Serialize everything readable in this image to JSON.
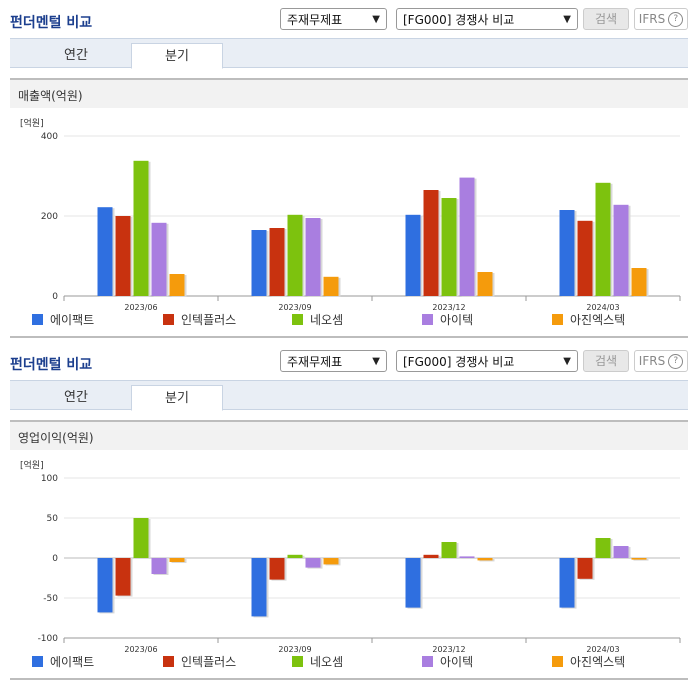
{
  "panels": [
    {
      "title": "펀더멘털 비교",
      "select1": "주재무제표",
      "select2": "[FG000] 경쟁사 비교",
      "search_label": "검색",
      "ifrs_label": "IFRS",
      "help_glyph": "?",
      "tabs": [
        "연간",
        "분기"
      ],
      "active_tab": "분기",
      "section_title": "매출액(억원)",
      "unit_label": "[억원]"
    },
    {
      "title": "펀더멘털 비교",
      "select1": "주재무제표",
      "select2": "[FG000] 경쟁사 비교",
      "search_label": "검색",
      "ifrs_label": "IFRS",
      "help_glyph": "?",
      "tabs": [
        "연간",
        "분기"
      ],
      "active_tab": "분기",
      "section_title": "영업이익(억원)",
      "unit_label": "[억원]"
    }
  ],
  "colors": {
    "에이팩트": "#2f6fe0",
    "인텍플러스": "#c8320f",
    "네오셈": "#7dc20e",
    "아이텍": "#a97ee0",
    "아진엑스텍": "#f59b0c"
  },
  "chart_data": [
    {
      "type": "bar",
      "title": "",
      "ylabel": "[억원]",
      "categories": [
        "2023/06",
        "2023/09",
        "2023/12",
        "2024/03"
      ],
      "ylim": [
        0,
        400
      ],
      "yticks": [
        0,
        200,
        400
      ],
      "series": [
        {
          "name": "에이팩트",
          "values": [
            222,
            165,
            203,
            215
          ]
        },
        {
          "name": "인텍플러스",
          "values": [
            200,
            170,
            265,
            188
          ]
        },
        {
          "name": "네오셈",
          "values": [
            338,
            203,
            245,
            283
          ]
        },
        {
          "name": "아이텍",
          "values": [
            183,
            195,
            296,
            228
          ]
        },
        {
          "name": "아진엑스텍",
          "values": [
            55,
            48,
            60,
            70
          ]
        }
      ],
      "legend_position": "bottom"
    },
    {
      "type": "bar",
      "title": "",
      "ylabel": "[억원]",
      "categories": [
        "2023/06",
        "2023/09",
        "2023/12",
        "2024/03"
      ],
      "ylim": [
        -100,
        100
      ],
      "yticks": [
        100,
        50,
        0,
        -50,
        -100
      ],
      "series": [
        {
          "name": "에이팩트",
          "values": [
            -68,
            -73,
            -62,
            -62
          ]
        },
        {
          "name": "인텍플러스",
          "values": [
            -47,
            -27,
            4,
            -26
          ]
        },
        {
          "name": "네오셈",
          "values": [
            50,
            4,
            20,
            25
          ]
        },
        {
          "name": "아이텍",
          "values": [
            -20,
            -12,
            2,
            15
          ]
        },
        {
          "name": "아진엑스텍",
          "values": [
            -5,
            -8,
            -3,
            -2
          ]
        }
      ],
      "legend_position": "bottom"
    }
  ]
}
